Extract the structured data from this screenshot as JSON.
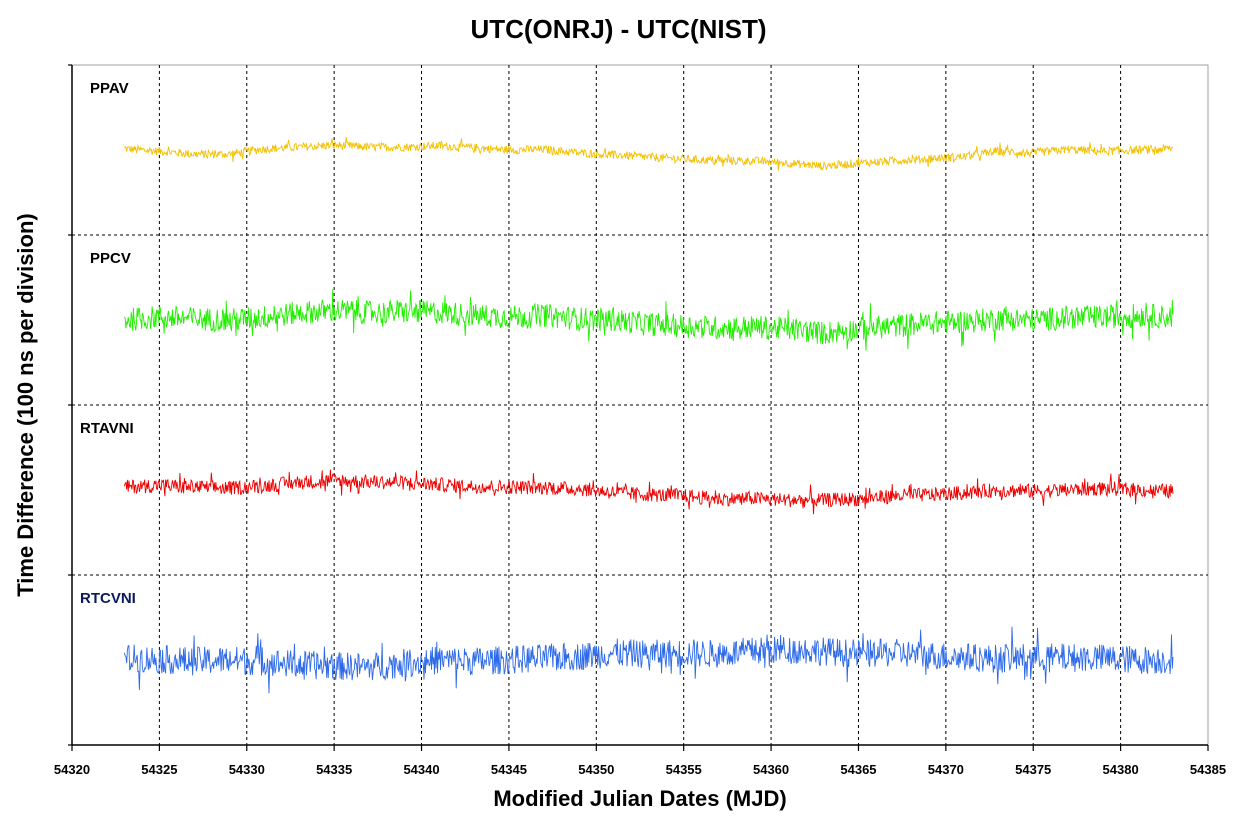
{
  "chart_data": {
    "type": "line",
    "title": "UTC(ONRJ) - UTC(NIST)",
    "xlabel": "Modified Julian Dates (MJD)",
    "ylabel": "Time Difference (100 ns per division)",
    "xlim": [
      54320,
      54385
    ],
    "x_ticks": [
      "54320",
      "54325",
      "54330",
      "54335",
      "54340",
      "54345",
      "54350",
      "54355",
      "54360",
      "54365",
      "54370",
      "54375",
      "54380",
      "54385"
    ],
    "y_divisions": 4,
    "grid": "dashed",
    "x_range_data": [
      54323,
      54383
    ],
    "series": [
      {
        "name": "PPAV",
        "color": "#F5C000",
        "label_color": "#000000",
        "noise": 0.07,
        "x": [
          54323,
          54325,
          54327,
          54329,
          54331,
          54333,
          54335,
          54337,
          54339,
          54341,
          54343,
          54345,
          54347,
          54349,
          54351,
          54353,
          54355,
          54357,
          54359,
          54361,
          54363,
          54365,
          54367,
          54369,
          54371,
          54373,
          54375,
          54377,
          54379,
          54381,
          54383
        ],
        "y": [
          2.47,
          2.43,
          2.38,
          2.38,
          2.47,
          2.5,
          2.53,
          2.5,
          2.5,
          2.52,
          2.49,
          2.45,
          2.46,
          2.4,
          2.37,
          2.33,
          2.3,
          2.27,
          2.27,
          2.23,
          2.18,
          2.23,
          2.27,
          2.3,
          2.34,
          2.43,
          2.4,
          2.46,
          2.43,
          2.45,
          2.47
        ]
      },
      {
        "name": "PPCV",
        "color": "#22EE00",
        "label_color": "#000000",
        "noise": 0.2,
        "x": [
          54323,
          54325,
          54327,
          54329,
          54331,
          54333,
          54335,
          54337,
          54339,
          54341,
          54343,
          54345,
          54347,
          54349,
          54351,
          54353,
          54355,
          54357,
          54359,
          54361,
          54363,
          54365,
          54367,
          54369,
          54371,
          54373,
          54375,
          54377,
          54379,
          54381,
          54383
        ],
        "y": [
          1.5,
          1.55,
          1.52,
          1.5,
          1.55,
          1.62,
          1.66,
          1.62,
          1.64,
          1.63,
          1.58,
          1.55,
          1.58,
          1.52,
          1.5,
          1.43,
          1.4,
          1.37,
          1.38,
          1.35,
          1.28,
          1.35,
          1.4,
          1.45,
          1.47,
          1.52,
          1.5,
          1.54,
          1.55,
          1.58,
          1.55
        ]
      },
      {
        "name": "RTAVNI",
        "color": "#EE0000",
        "label_color": "#000000",
        "noise": 0.12,
        "x": [
          54323,
          54325,
          54327,
          54329,
          54331,
          54333,
          54335,
          54337,
          54339,
          54341,
          54343,
          54345,
          54347,
          54349,
          54351,
          54353,
          54355,
          54357,
          54359,
          54361,
          54363,
          54365,
          54367,
          54369,
          54371,
          54373,
          54375,
          54377,
          54379,
          54381,
          54383
        ],
        "y": [
          0.55,
          0.58,
          0.55,
          0.53,
          0.57,
          0.63,
          0.66,
          0.64,
          0.62,
          0.59,
          0.56,
          0.55,
          0.54,
          0.52,
          0.46,
          0.42,
          0.4,
          0.35,
          0.36,
          0.33,
          0.33,
          0.35,
          0.4,
          0.42,
          0.45,
          0.5,
          0.48,
          0.5,
          0.53,
          0.5,
          0.48
        ]
      },
      {
        "name": "RTCVNI",
        "color": "#2E6AE8",
        "label_color": "#0A1A5E",
        "noise": 0.24,
        "x": [
          54323,
          54325,
          54327,
          54329,
          54331,
          54333,
          54335,
          54337,
          54339,
          54341,
          54343,
          54345,
          54347,
          54349,
          54351,
          54353,
          54355,
          54357,
          54359,
          54361,
          54363,
          54365,
          54367,
          54369,
          54371,
          54373,
          54375,
          54377,
          54379,
          54381,
          54383
        ],
        "y": [
          -0.47,
          -0.49,
          -0.52,
          -0.5,
          -0.53,
          -0.58,
          -0.6,
          -0.62,
          -0.55,
          -0.5,
          -0.52,
          -0.5,
          -0.47,
          -0.44,
          -0.38,
          -0.4,
          -0.38,
          -0.4,
          -0.35,
          -0.33,
          -0.35,
          -0.4,
          -0.38,
          -0.42,
          -0.45,
          -0.48,
          -0.45,
          -0.46,
          -0.47,
          -0.5,
          -0.5
        ]
      }
    ]
  }
}
